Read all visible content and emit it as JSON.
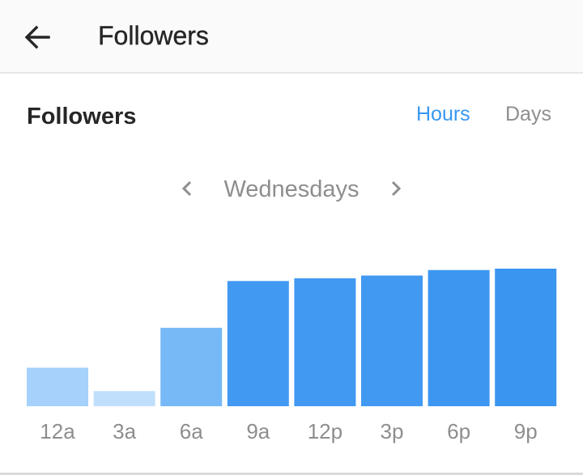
{
  "header": {
    "title": "Followers",
    "back_icon": "arrow-left-icon"
  },
  "section": {
    "title": "Followers",
    "toggle_hours": "Hours",
    "toggle_days": "Days",
    "active_toggle": "Hours",
    "active_color": "#3897f0",
    "inactive_color": "#8e8e8e"
  },
  "day_selector": {
    "label": "Wednesdays",
    "prev_icon": "chevron-left-icon",
    "next_icon": "chevron-right-icon"
  },
  "chart_data": {
    "type": "bar",
    "categories": [
      "12a",
      "3a",
      "6a",
      "9a",
      "12p",
      "3p",
      "6p",
      "9p"
    ],
    "values": [
      28,
      11,
      57,
      91,
      93,
      95,
      99,
      100
    ],
    "ylim": [
      0,
      100
    ],
    "colors": [
      "#a5d1fb",
      "#c0dffc",
      "#77b8f7",
      "#4199f2",
      "#4199f2",
      "#4199f2",
      "#3d97f1",
      "#3a95f0"
    ]
  }
}
